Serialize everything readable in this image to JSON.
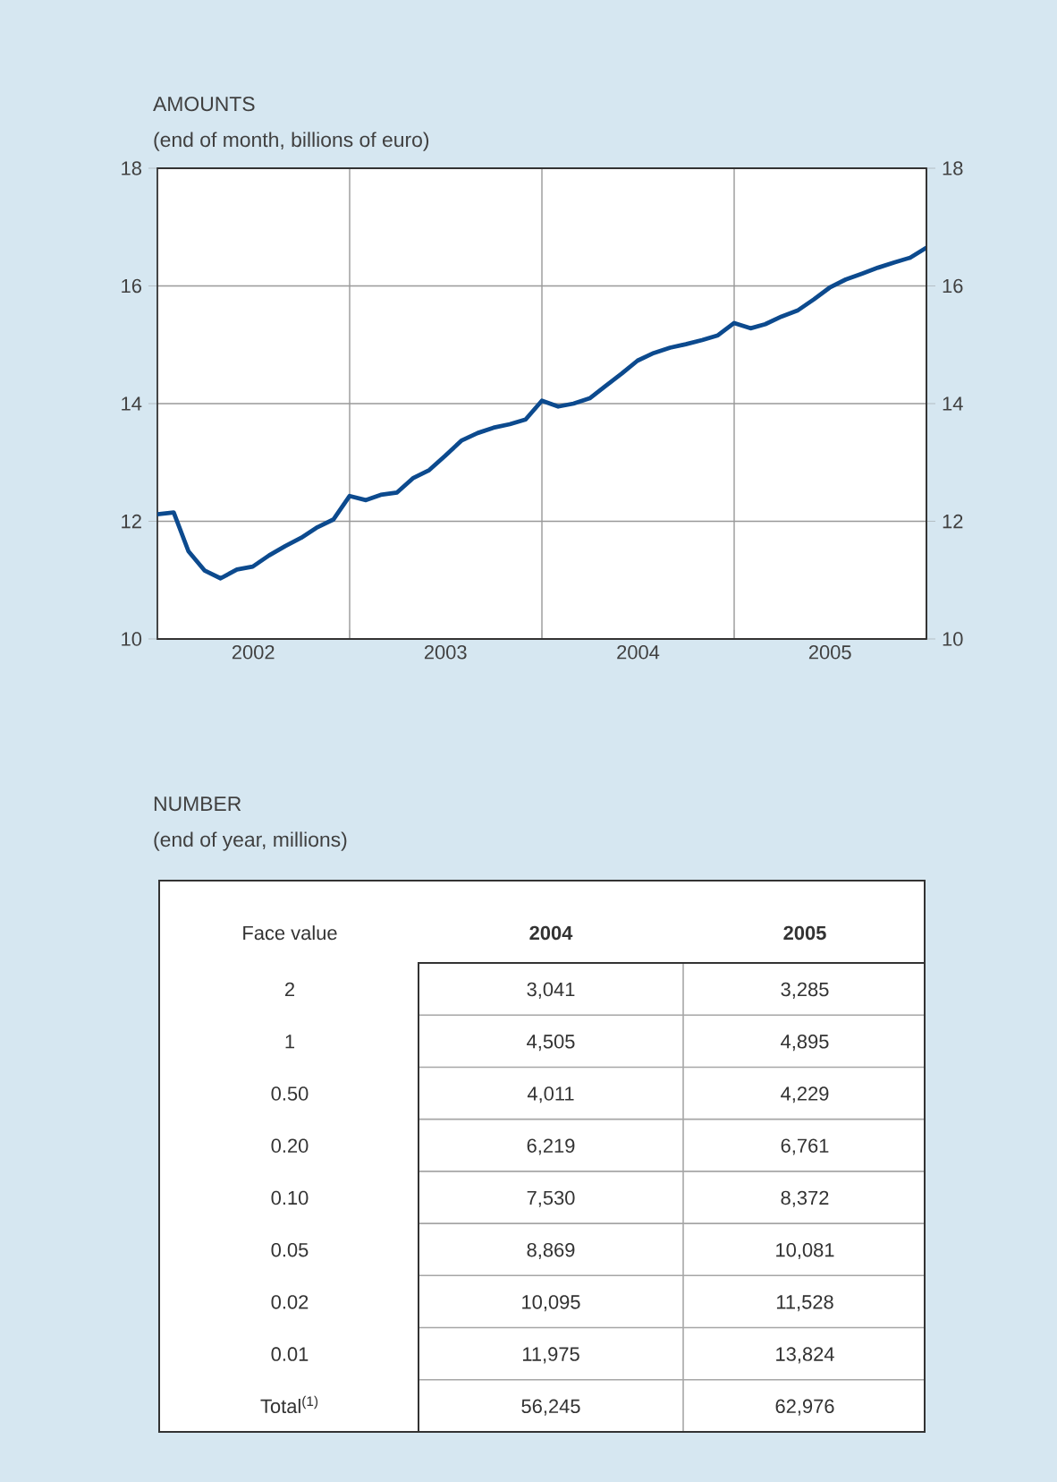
{
  "chart_data": [
    {
      "type": "line",
      "title": "AMOUNTS",
      "subtitle": "(end of month, billions of euro)",
      "x": [
        "2001-12-31",
        "2002-01-31",
        "2002-02-28",
        "2002-03-31",
        "2002-04-30",
        "2002-05-31",
        "2002-06-30",
        "2002-07-31",
        "2002-08-31",
        "2002-09-30",
        "2002-10-31",
        "2002-11-30",
        "2002-12-31",
        "2003-01-31",
        "2003-02-28",
        "2003-03-31",
        "2003-04-30",
        "2003-05-31",
        "2003-06-30",
        "2003-07-31",
        "2003-08-31",
        "2003-09-30",
        "2003-10-31",
        "2003-11-30",
        "2003-12-31",
        "2004-01-31",
        "2004-02-29",
        "2004-03-31",
        "2004-04-30",
        "2004-05-31",
        "2004-06-30",
        "2004-07-31",
        "2004-08-31",
        "2004-09-30",
        "2004-10-31",
        "2004-11-30",
        "2004-12-31",
        "2005-01-31",
        "2005-02-28",
        "2005-03-31",
        "2005-04-30",
        "2005-05-31",
        "2005-06-30",
        "2005-07-31",
        "2005-08-31",
        "2005-09-30",
        "2005-10-31",
        "2005-11-30",
        "2005-12-31"
      ],
      "series": [
        {
          "color": "#0c4a8e",
          "values": [
            12.12,
            12.15,
            11.49,
            11.16,
            11.03,
            11.18,
            11.23,
            11.42,
            11.58,
            11.72,
            11.9,
            12.03,
            12.43,
            12.36,
            12.45,
            12.49,
            12.73,
            12.87,
            13.11,
            13.37,
            13.5,
            13.59,
            13.65,
            13.73,
            14.05,
            13.95,
            14.0,
            14.09,
            14.3,
            14.51,
            14.73,
            14.86,
            14.95,
            15.01,
            15.08,
            15.16,
            15.37,
            15.28,
            15.35,
            15.48,
            15.58,
            15.77,
            15.97,
            16.11,
            16.21,
            16.31,
            16.4,
            16.48,
            16.65
          ]
        }
      ],
      "xlim": [
        "2001-12-31",
        "2005-12-31"
      ],
      "xticks": [
        {
          "value": "2002-12-31",
          "label": null
        },
        {
          "value": "2003-12-31",
          "label": null
        },
        {
          "value": "2004-12-31",
          "label": null
        },
        {
          "value": "2002-07-01",
          "label": "2002"
        },
        {
          "value": "2003-07-01",
          "label": "2003"
        },
        {
          "value": "2004-07-01",
          "label": "2004"
        },
        {
          "value": "2005-07-01",
          "label": "2005"
        }
      ],
      "ylim": [
        10,
        18
      ],
      "yticks": [
        10,
        12,
        14,
        16,
        18
      ],
      "y2lim": [
        10,
        18
      ],
      "y2ticks": [
        10,
        12,
        14,
        16,
        18
      ],
      "grid": true,
      "marker": "none",
      "line_style": "solid"
    },
    {
      "type": "other",
      "title": "NUMBER",
      "subtitle": "(end of year, millions)",
      "xlabel": "Face value",
      "categories": [
        "2",
        "1",
        "0.50",
        "0.20",
        "0.10",
        "0.05",
        "0.02",
        "0.01",
        "Total$^{(1)}$"
      ],
      "series": [
        {
          "name": "2004",
          "values": [
            3041,
            4505,
            4011,
            6219,
            7530,
            8869,
            10095,
            11975,
            56245
          ],
          "value_labels": [
            "3,041",
            "4,505",
            "4,011",
            "6,219",
            "7,530",
            "8,869",
            "10,095",
            "11,975",
            "56,245"
          ]
        },
        {
          "name": "2005",
          "values": [
            3285,
            4895,
            4229,
            6761,
            8372,
            10081,
            11528,
            13824,
            62976
          ],
          "value_labels": [
            "3,285",
            "4,895",
            "4,229",
            "6,761",
            "8,372",
            "10,081",
            "11,528",
            "13,824",
            "62,976"
          ]
        }
      ]
    }
  ]
}
